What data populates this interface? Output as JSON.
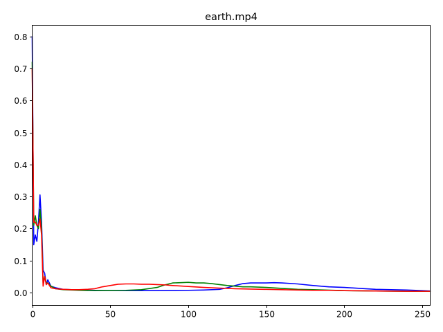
{
  "chart_data": {
    "type": "line",
    "title": "earth.mp4",
    "xlabel": "",
    "ylabel": "",
    "xlim": [
      0,
      255
    ],
    "ylim": [
      -0.04,
      0.835
    ],
    "grid": false,
    "legend": "none",
    "x_ticks": [
      {
        "value": 0,
        "label": "0"
      },
      {
        "value": 50,
        "label": "50"
      },
      {
        "value": 100,
        "label": "100"
      },
      {
        "value": 150,
        "label": "150"
      },
      {
        "value": 200,
        "label": "200"
      },
      {
        "value": 250,
        "label": "250"
      }
    ],
    "y_ticks": [
      {
        "value": 0.0,
        "label": "0.0"
      },
      {
        "value": 0.1,
        "label": "0.1"
      },
      {
        "value": 0.2,
        "label": "0.2"
      },
      {
        "value": 0.3,
        "label": "0.3"
      },
      {
        "value": 0.4,
        "label": "0.4"
      },
      {
        "value": 0.5,
        "label": "0.5"
      },
      {
        "value": 0.6,
        "label": "0.6"
      },
      {
        "value": 0.7,
        "label": "0.7"
      },
      {
        "value": 0.8,
        "label": "0.8"
      }
    ],
    "series": [
      {
        "color": "#0000ff",
        "points": [
          [
            0,
            0.8
          ],
          [
            1,
            0.15
          ],
          [
            2,
            0.18
          ],
          [
            3,
            0.16
          ],
          [
            4,
            0.22
          ],
          [
            5,
            0.305
          ],
          [
            6,
            0.22
          ],
          [
            7,
            0.07
          ],
          [
            8,
            0.06
          ],
          [
            9,
            0.025
          ],
          [
            10,
            0.04
          ],
          [
            12,
            0.02
          ],
          [
            15,
            0.015
          ],
          [
            20,
            0.01
          ],
          [
            30,
            0.008
          ],
          [
            40,
            0.007
          ],
          [
            60,
            0.006
          ],
          [
            80,
            0.006
          ],
          [
            100,
            0.007
          ],
          [
            110,
            0.008
          ],
          [
            120,
            0.01
          ],
          [
            125,
            0.015
          ],
          [
            130,
            0.022
          ],
          [
            135,
            0.028
          ],
          [
            140,
            0.03
          ],
          [
            145,
            0.03
          ],
          [
            150,
            0.03
          ],
          [
            155,
            0.031
          ],
          [
            160,
            0.03
          ],
          [
            170,
            0.027
          ],
          [
            180,
            0.022
          ],
          [
            190,
            0.018
          ],
          [
            200,
            0.016
          ],
          [
            210,
            0.013
          ],
          [
            220,
            0.01
          ],
          [
            230,
            0.009
          ],
          [
            240,
            0.008
          ],
          [
            250,
            0.006
          ],
          [
            255,
            0.005
          ]
        ]
      },
      {
        "color": "#008000",
        "points": [
          [
            0,
            0.72
          ],
          [
            1,
            0.21
          ],
          [
            2,
            0.24
          ],
          [
            3,
            0.21
          ],
          [
            4,
            0.2
          ],
          [
            5,
            0.26
          ],
          [
            6,
            0.2
          ],
          [
            7,
            0.03
          ],
          [
            8,
            0.05
          ],
          [
            9,
            0.03
          ],
          [
            10,
            0.03
          ],
          [
            12,
            0.02
          ],
          [
            15,
            0.012
          ],
          [
            20,
            0.009
          ],
          [
            30,
            0.007
          ],
          [
            40,
            0.006
          ],
          [
            60,
            0.007
          ],
          [
            70,
            0.009
          ],
          [
            80,
            0.016
          ],
          [
            85,
            0.024
          ],
          [
            90,
            0.03
          ],
          [
            95,
            0.031
          ],
          [
            100,
            0.032
          ],
          [
            105,
            0.03
          ],
          [
            110,
            0.03
          ],
          [
            115,
            0.028
          ],
          [
            120,
            0.025
          ],
          [
            125,
            0.022
          ],
          [
            130,
            0.02
          ],
          [
            135,
            0.018
          ],
          [
            140,
            0.018
          ],
          [
            150,
            0.016
          ],
          [
            160,
            0.013
          ],
          [
            170,
            0.01
          ],
          [
            180,
            0.009
          ],
          [
            200,
            0.006
          ],
          [
            220,
            0.005
          ],
          [
            240,
            0.004
          ],
          [
            255,
            0.004
          ]
        ]
      },
      {
        "color": "#ff0000",
        "points": [
          [
            0,
            0.7
          ],
          [
            1,
            0.22
          ],
          [
            2,
            0.22
          ],
          [
            3,
            0.21
          ],
          [
            4,
            0.21
          ],
          [
            5,
            0.23
          ],
          [
            6,
            0.18
          ],
          [
            7,
            0.02
          ],
          [
            8,
            0.05
          ],
          [
            9,
            0.025
          ],
          [
            10,
            0.03
          ],
          [
            12,
            0.015
          ],
          [
            15,
            0.012
          ],
          [
            20,
            0.01
          ],
          [
            25,
            0.009
          ],
          [
            30,
            0.009
          ],
          [
            35,
            0.01
          ],
          [
            40,
            0.012
          ],
          [
            45,
            0.018
          ],
          [
            50,
            0.022
          ],
          [
            55,
            0.026
          ],
          [
            60,
            0.027
          ],
          [
            65,
            0.027
          ],
          [
            70,
            0.026
          ],
          [
            75,
            0.026
          ],
          [
            80,
            0.025
          ],
          [
            85,
            0.024
          ],
          [
            90,
            0.022
          ],
          [
            100,
            0.019
          ],
          [
            110,
            0.016
          ],
          [
            120,
            0.014
          ],
          [
            130,
            0.012
          ],
          [
            140,
            0.011
          ],
          [
            150,
            0.01
          ],
          [
            160,
            0.009
          ],
          [
            170,
            0.008
          ],
          [
            180,
            0.007
          ],
          [
            190,
            0.007
          ],
          [
            200,
            0.006
          ],
          [
            220,
            0.005
          ],
          [
            240,
            0.004
          ],
          [
            255,
            0.004
          ]
        ]
      }
    ]
  }
}
